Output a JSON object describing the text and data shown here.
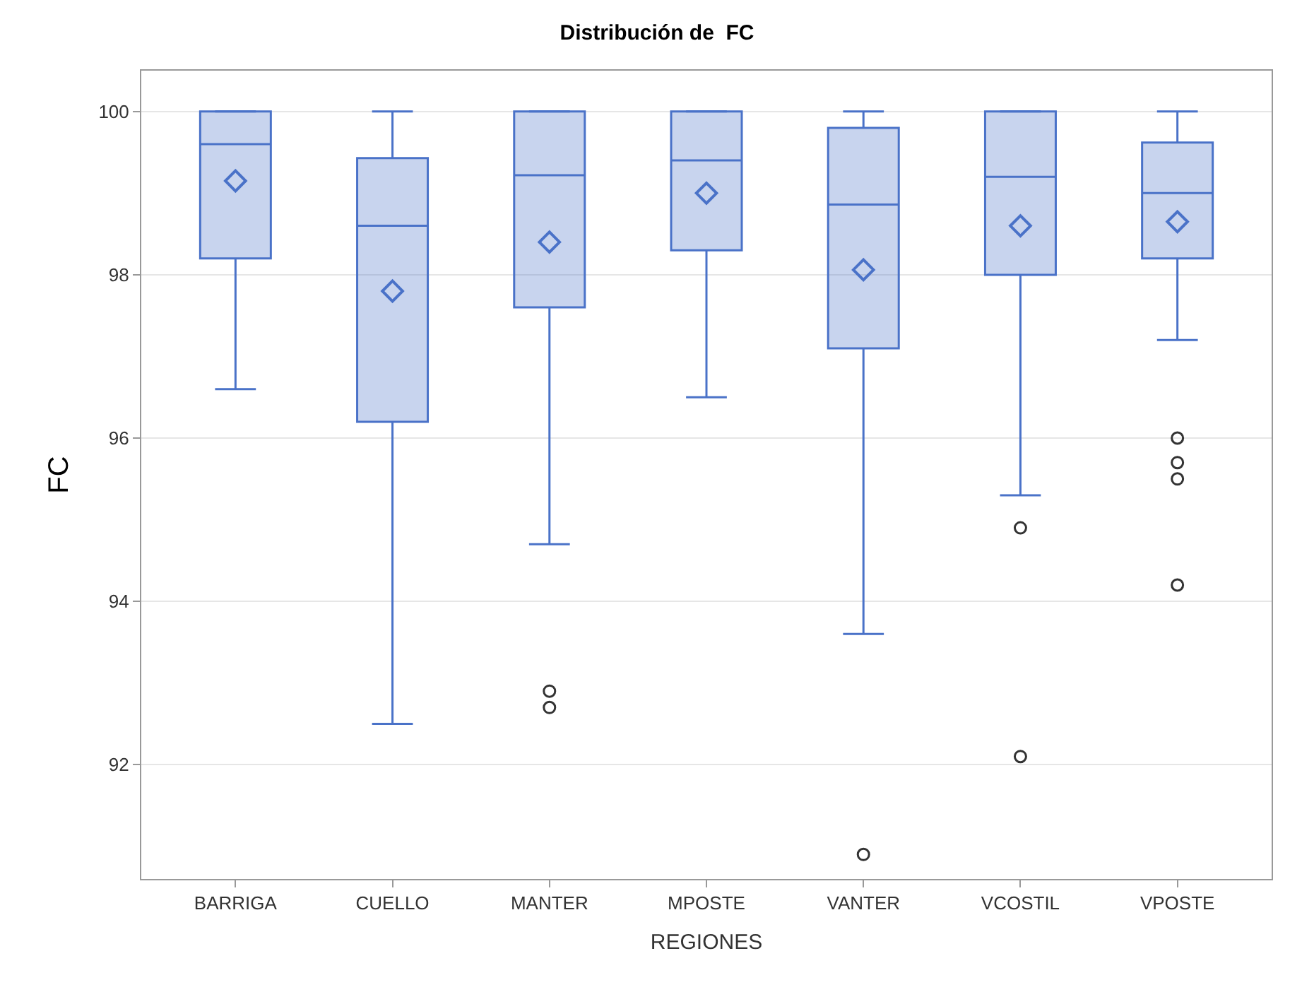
{
  "chart_data": {
    "type": "box",
    "title": "Distribución de  FC",
    "xlabel": "REGIONES",
    "ylabel": "FC",
    "categories": [
      "BARRIGA",
      "CUELLO",
      "MANTER",
      "MPOSTE",
      "VANTER",
      "VCOSTIL",
      "VPOSTE"
    ],
    "series": [
      {
        "color": "#4a72c8",
        "boxes": [
          {
            "low": 96.6,
            "q1": 98.2,
            "median": 99.6,
            "q3": 100,
            "high": 100,
            "mean": 99.15
          },
          {
            "low": 92.5,
            "q1": 96.2,
            "median": 98.6,
            "q3": 99.43,
            "high": 100,
            "mean": 97.8
          },
          {
            "low": 94.7,
            "q1": 97.6,
            "median": 99.22,
            "q3": 100,
            "high": 100,
            "mean": 98.4,
            "outliers": [
              92.9,
              92.7
            ]
          },
          {
            "low": 96.5,
            "q1": 98.3,
            "median": 99.4,
            "q3": 100,
            "high": 100,
            "mean": 99.0
          },
          {
            "low": 93.6,
            "q1": 97.1,
            "median": 98.86,
            "q3": 99.8,
            "high": 100,
            "mean": 98.06,
            "outliers": [
              90.9
            ]
          },
          {
            "low": 95.3,
            "q1": 98.0,
            "median": 99.2,
            "q3": 100,
            "high": 100,
            "mean": 98.6,
            "outliers": [
              94.9,
              92.1
            ]
          },
          {
            "low": 97.2,
            "q1": 98.2,
            "median": 99.0,
            "q3": 99.62,
            "high": 100,
            "mean": 98.65,
            "outliers": [
              96.0,
              95.7,
              95.5,
              94.2
            ]
          }
        ]
      }
    ],
    "ylim": [
      90.6,
      100.5
    ],
    "yticks": [
      92,
      94,
      96,
      98,
      100
    ],
    "grid": "y"
  }
}
